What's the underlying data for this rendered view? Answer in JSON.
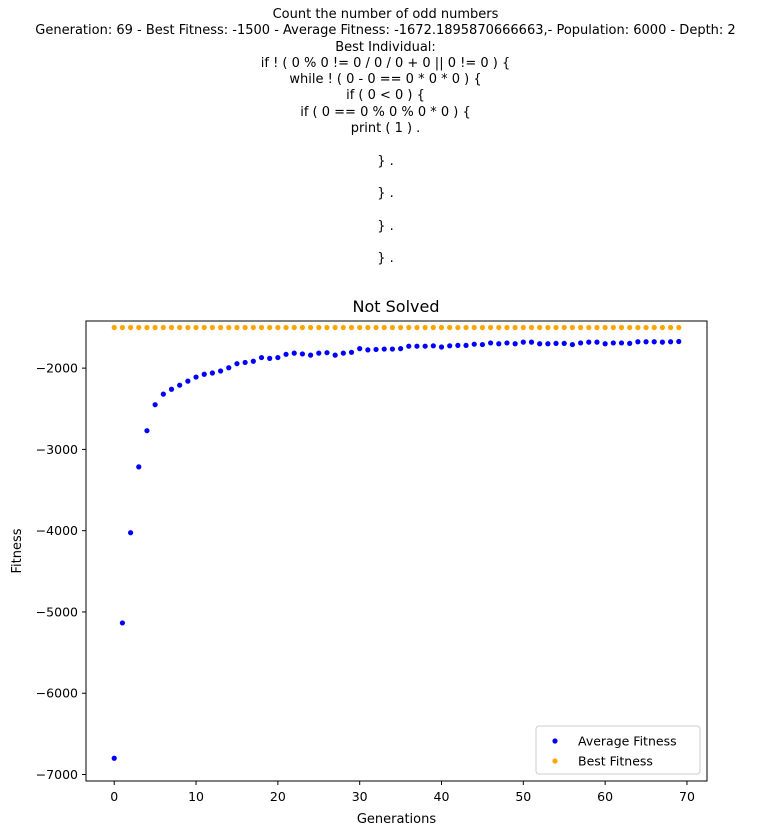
{
  "suptitle_lines": [
    "Count the number of odd numbers",
    "Generation: 69 - Best Fitness: -1500 - Average Fitness: -1672.1895870666663,- Population: 6000 - Depth: 2",
    "Best Individual:",
    "if ! ( 0 % 0 != 0 / 0 / 0 + 0 || 0 != 0 ) {",
    "while ! ( 0 - 0 == 0 * 0 * 0 ) {",
    "if ( 0 < 0 ) {",
    "if ( 0 == 0 % 0 % 0 * 0 ) {",
    "print ( 1 ) .",
    "",
    "} .",
    "",
    "} .",
    "",
    "} .",
    "",
    "} ."
  ],
  "chart_data": {
    "type": "scatter",
    "title": "Not Solved",
    "xlabel": "Generations",
    "ylabel": "Fitness",
    "xlim": [
      -3.45,
      72.45
    ],
    "ylim": [
      -7080,
      -1420
    ],
    "xticks": [
      0,
      10,
      20,
      30,
      40,
      50,
      60,
      70
    ],
    "yticks": [
      -7000,
      -6000,
      -5000,
      -4000,
      -3000,
      -2000
    ],
    "legend_position": "lower right",
    "x": [
      0,
      1,
      2,
      3,
      4,
      5,
      6,
      7,
      8,
      9,
      10,
      11,
      12,
      13,
      14,
      15,
      16,
      17,
      18,
      19,
      20,
      21,
      22,
      23,
      24,
      25,
      26,
      27,
      28,
      29,
      30,
      31,
      32,
      33,
      34,
      35,
      36,
      37,
      38,
      39,
      40,
      41,
      42,
      43,
      44,
      45,
      46,
      47,
      48,
      49,
      50,
      51,
      52,
      53,
      54,
      55,
      56,
      57,
      58,
      59,
      60,
      61,
      62,
      63,
      64,
      65,
      66,
      67,
      68,
      69
    ],
    "series": [
      {
        "name": "Average Fitness",
        "color": "#0000ff",
        "values": [
          -6800,
          -5135,
          -4025,
          -3215,
          -2770,
          -2450,
          -2320,
          -2260,
          -2210,
          -2160,
          -2110,
          -2075,
          -2060,
          -2035,
          -1995,
          -1945,
          -1930,
          -1915,
          -1870,
          -1880,
          -1870,
          -1830,
          -1815,
          -1825,
          -1840,
          -1815,
          -1810,
          -1840,
          -1815,
          -1805,
          -1760,
          -1775,
          -1770,
          -1765,
          -1765,
          -1760,
          -1730,
          -1730,
          -1730,
          -1725,
          -1740,
          -1725,
          -1720,
          -1720,
          -1705,
          -1710,
          -1690,
          -1700,
          -1690,
          -1700,
          -1680,
          -1680,
          -1700,
          -1700,
          -1695,
          -1695,
          -1710,
          -1690,
          -1680,
          -1680,
          -1700,
          -1690,
          -1690,
          -1695,
          -1675,
          -1675,
          -1675,
          -1680,
          -1675,
          -1672
        ]
      },
      {
        "name": "Best Fitness",
        "color": "#ffa500",
        "values": [
          -1500,
          -1500,
          -1500,
          -1500,
          -1500,
          -1500,
          -1500,
          -1500,
          -1500,
          -1500,
          -1500,
          -1500,
          -1500,
          -1500,
          -1500,
          -1500,
          -1500,
          -1500,
          -1500,
          -1500,
          -1500,
          -1500,
          -1500,
          -1500,
          -1500,
          -1500,
          -1500,
          -1500,
          -1500,
          -1500,
          -1500,
          -1500,
          -1500,
          -1500,
          -1500,
          -1500,
          -1500,
          -1500,
          -1500,
          -1500,
          -1500,
          -1500,
          -1500,
          -1500,
          -1500,
          -1500,
          -1500,
          -1500,
          -1500,
          -1500,
          -1500,
          -1500,
          -1500,
          -1500,
          -1500,
          -1500,
          -1500,
          -1500,
          -1500,
          -1500,
          -1500,
          -1500,
          -1500,
          -1500,
          -1500,
          -1500,
          -1500,
          -1500,
          -1500,
          -1500
        ]
      }
    ]
  }
}
